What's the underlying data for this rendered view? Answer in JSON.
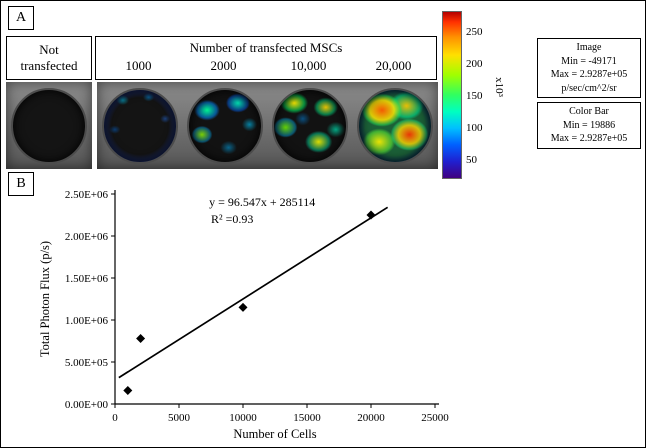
{
  "panel_a": {
    "label": "A",
    "not_transfected": "Not transfected",
    "header": "Number of transfected MSCs",
    "cell_counts": [
      "1000",
      "2000",
      "10,000",
      "20,000"
    ],
    "colorbar": {
      "ticks": [
        "250",
        "200",
        "150",
        "100",
        "50"
      ],
      "multiplier": "x10³"
    },
    "image_box": {
      "title": "Image",
      "min": "Min = -49171",
      "max": "Max = 2.9287e+05",
      "units": "p/sec/cm^2/sr"
    },
    "colorbar_box": {
      "title": "Color Bar",
      "min": "Min = 19886",
      "max": "Max = 2.9287e+05"
    }
  },
  "panel_b": {
    "label": "B"
  },
  "chart_data": {
    "type": "scatter",
    "title": "",
    "xlabel": "Number of Cells",
    "ylabel": "Total Photon Flux (p/s)",
    "x": [
      1000,
      2000,
      10000,
      20000
    ],
    "y": [
      160000,
      780000,
      1150000,
      2250000
    ],
    "xlim": [
      0,
      25000
    ],
    "ylim": [
      0,
      2500000
    ],
    "xticks": [
      0,
      5000,
      10000,
      15000,
      20000,
      25000
    ],
    "xtick_labels": [
      "0",
      "5000",
      "10000",
      "15000",
      "20000",
      "25000"
    ],
    "yticks": [
      0,
      500000,
      1000000,
      1500000,
      2000000,
      2500000
    ],
    "ytick_labels": [
      "0.00E+00",
      "5.00E+05",
      "1.00E+06",
      "1.50E+06",
      "2.00E+06",
      "2.50E+06"
    ],
    "grid": false,
    "legend": "none",
    "marker": "diamond",
    "equation": "y = 96.547x + 285114",
    "r_squared": "R² =0.93",
    "trendline": {
      "slope": 96.547,
      "intercept": 285114,
      "x_start": 300,
      "x_end": 21300
    },
    "annotation": {
      "x": 11500,
      "y": 2360000
    }
  }
}
